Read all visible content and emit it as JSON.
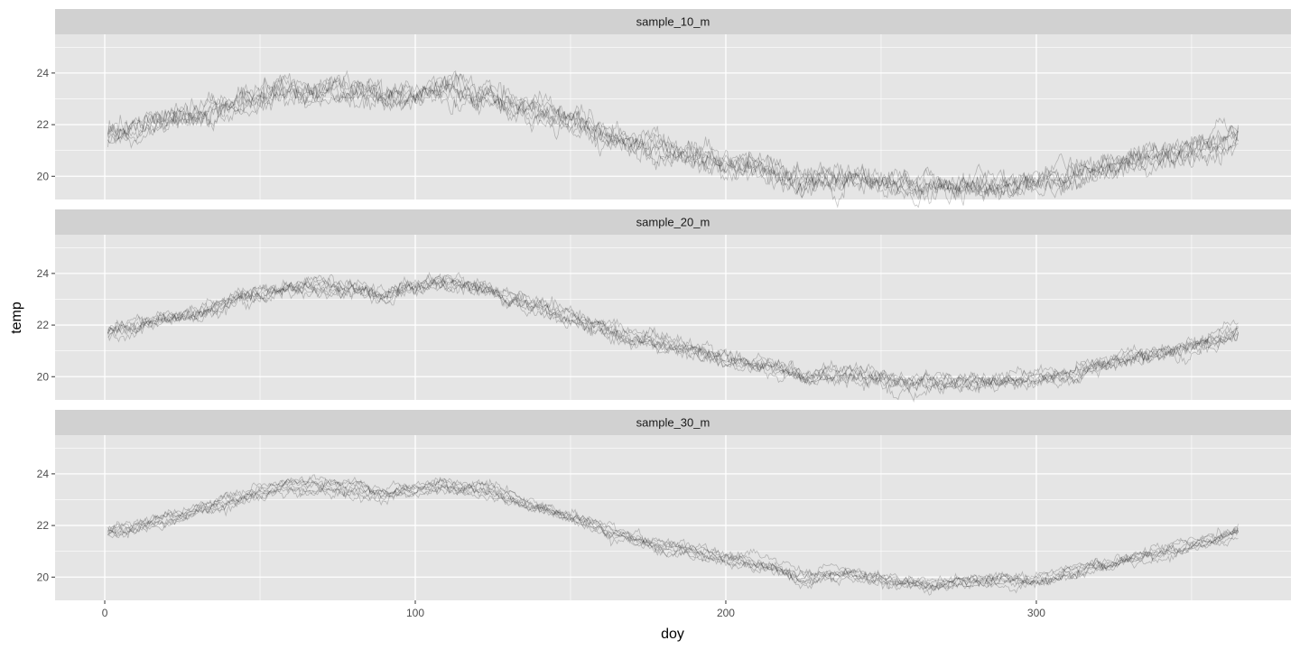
{
  "chart_data": {
    "type": "line",
    "xlabel": "doy",
    "ylabel": "temp",
    "xlim": [
      -16,
      382
    ],
    "ylim": [
      19.1,
      25.5
    ],
    "x_ticks": [
      0,
      100,
      200,
      300
    ],
    "y_ticks": [
      20,
      22,
      24
    ],
    "grid": true,
    "legend": "none",
    "replicates_per_panel": 8,
    "colors": {
      "panel_bg": "#e5e5e5",
      "strip_bg": "#d1d1d1",
      "grid": "#ffffff",
      "line": "#000000"
    },
    "mean_curve": {
      "x": [
        1,
        10,
        20,
        30,
        40,
        45,
        55,
        60,
        70,
        80,
        90,
        100,
        110,
        120,
        125,
        130,
        140,
        150,
        160,
        170,
        180,
        190,
        200,
        210,
        220,
        225,
        230,
        240,
        250,
        255,
        260,
        270,
        280,
        290,
        300,
        310,
        320,
        330,
        340,
        350,
        360,
        365
      ],
      "y": [
        21.7,
        21.9,
        22.2,
        22.5,
        22.9,
        23.1,
        23.4,
        23.5,
        23.5,
        23.4,
        23.2,
        23.4,
        23.6,
        23.4,
        23.3,
        23.0,
        22.7,
        22.3,
        21.9,
        21.5,
        21.2,
        21.0,
        20.7,
        20.5,
        20.2,
        19.95,
        20.0,
        20.1,
        19.9,
        19.75,
        19.75,
        19.8,
        19.8,
        19.8,
        19.9,
        20.1,
        20.4,
        20.7,
        20.95,
        21.2,
        21.5,
        21.8
      ]
    },
    "panels": [
      {
        "strip": "sample_10_m",
        "spread": 0.35
      },
      {
        "strip": "sample_20_m",
        "spread": 0.22
      },
      {
        "strip": "sample_30_m",
        "spread": 0.16
      }
    ]
  }
}
